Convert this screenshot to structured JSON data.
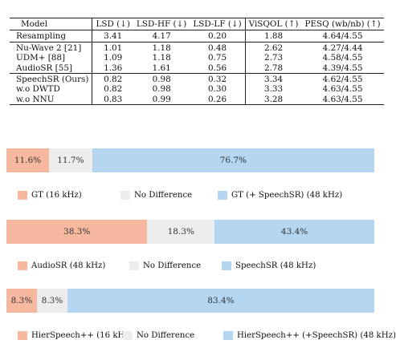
{
  "table": {
    "headers": [
      "Model",
      "LSD (↓)",
      "LSD-HF (↓)",
      "LSD-LF (↓)",
      "ViSQOL (↑)",
      "PESQ (wb/nb) (↑)"
    ],
    "groups": [
      [
        [
          "Resampling",
          "3.41",
          "4.17",
          "0.20",
          "1.88",
          "4.64/4.55"
        ]
      ],
      [
        [
          "Nu-Wave 2 [21]",
          "1.01",
          "1.18",
          "0.48",
          "2.62",
          "4.27/4.44"
        ],
        [
          "UDM+ [88]",
          "1.09",
          "1.18",
          "0.75",
          "2.73",
          "4.58/4.55"
        ],
        [
          "AudioSR [55]",
          "1.36",
          "1.61",
          "0.56",
          "2.78",
          "4.39/4.55"
        ]
      ],
      [
        [
          "SpeechSR (Ours)",
          "0.82",
          "0.98",
          "0.32",
          "3.34",
          "4.62/4.55"
        ],
        [
          "w.o DWTD",
          "0.82",
          "0.98",
          "0.30",
          "3.33",
          "4.63/4.55"
        ],
        [
          "w.o NNU",
          "0.83",
          "0.99",
          "0.26",
          "3.28",
          "4.63/4.55"
        ]
      ]
    ]
  },
  "chart_data": [
    {
      "type": "bar",
      "stacked": true,
      "orientation": "horizontal",
      "series": [
        {
          "name": "GT (16 kHz)",
          "value": 11.6,
          "label": "11.6%",
          "color": "#f7b8a0"
        },
        {
          "name": "No Difference",
          "value": 11.7,
          "label": "11.7%",
          "color": "#ededed"
        },
        {
          "name": "GT (+ SpeechSR) (48 kHz)",
          "value": 76.7,
          "label": "76.7%",
          "color": "#b4d6f0"
        }
      ]
    },
    {
      "type": "bar",
      "stacked": true,
      "orientation": "horizontal",
      "series": [
        {
          "name": "AudioSR (48 kHz)",
          "value": 38.3,
          "label": "38.3%",
          "color": "#f7b8a0"
        },
        {
          "name": "No Difference",
          "value": 18.3,
          "label": "18.3%",
          "color": "#ededed"
        },
        {
          "name": "SpeechSR (48 kHz)",
          "value": 43.4,
          "label": "43.4%",
          "color": "#b4d6f0"
        }
      ]
    },
    {
      "type": "bar",
      "stacked": true,
      "orientation": "horizontal",
      "series": [
        {
          "name": "HierSpeech++ (16 kHz)",
          "value": 8.3,
          "label": "8.3%",
          "color": "#f7b8a0"
        },
        {
          "name": "No Difference",
          "value": 8.3,
          "label": "8.3%",
          "color": "#ededed"
        },
        {
          "name": "HierSpeech++ (+SpeechSR) (48 kHz)",
          "value": 83.4,
          "label": "83.4%",
          "color": "#b4d6f0"
        }
      ]
    }
  ]
}
